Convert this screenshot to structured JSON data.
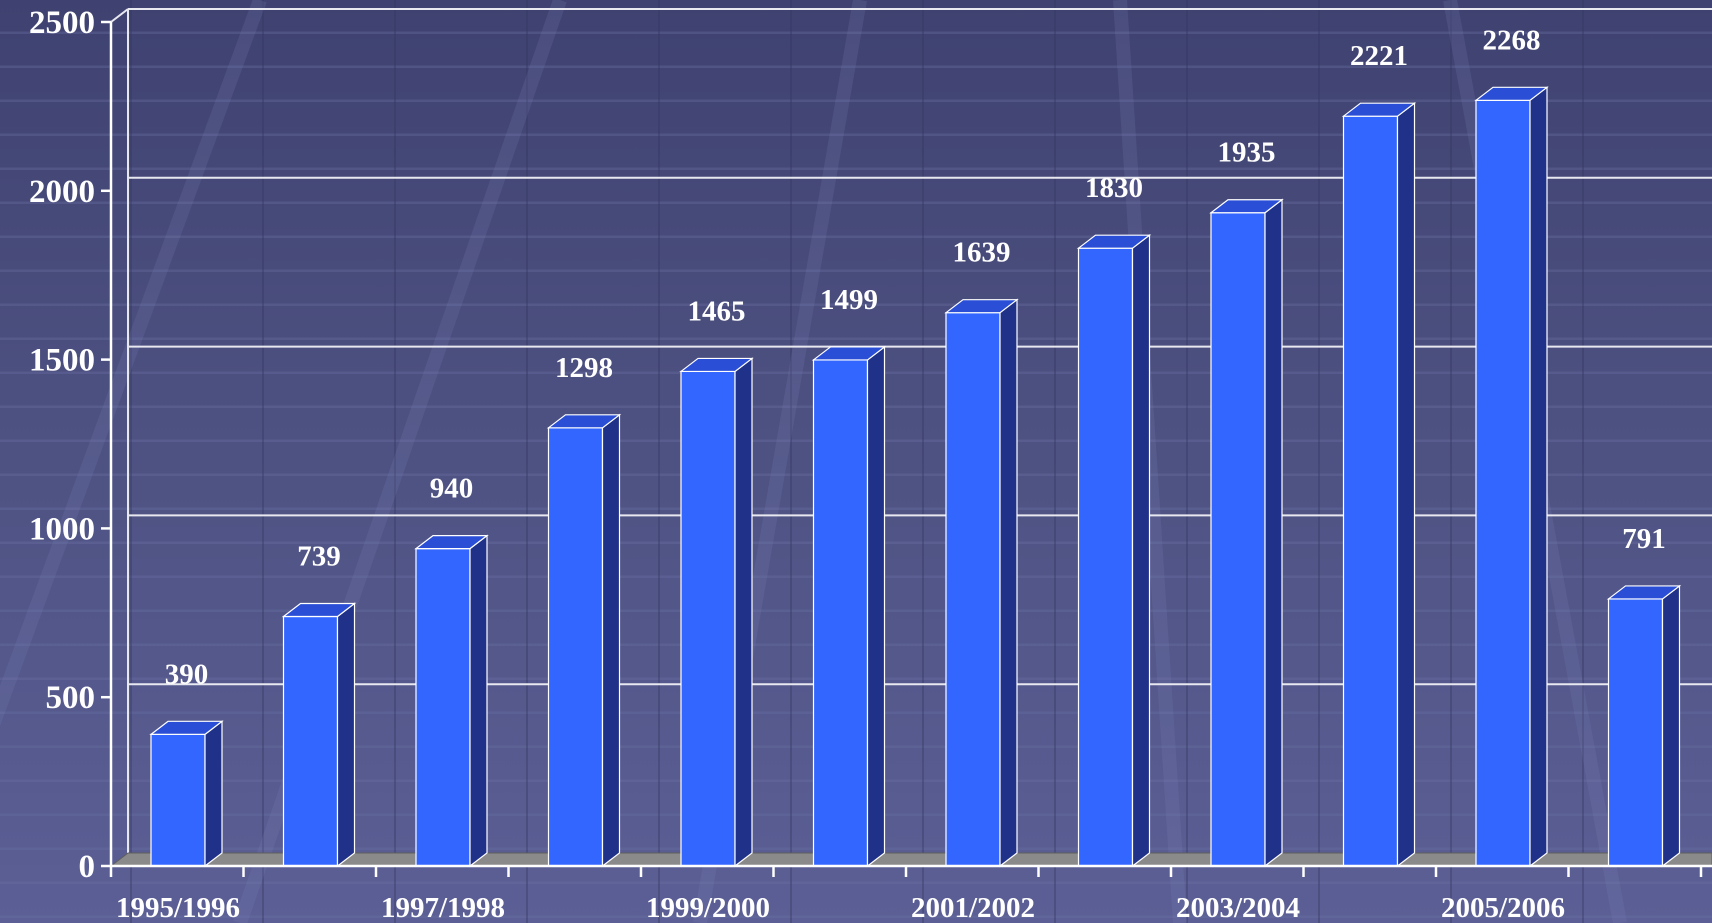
{
  "chart_data": {
    "type": "bar",
    "categories": [
      "1995/1996",
      "",
      "1997/1998",
      "",
      "1999/2000",
      "",
      "2001/2002",
      "",
      "2003/2004",
      "",
      "2005/2006",
      ""
    ],
    "values": [
      390,
      739,
      940,
      1298,
      1465,
      1499,
      1639,
      1830,
      1935,
      2221,
      2268,
      791
    ],
    "data_labels": [
      "390",
      "739",
      "940",
      "1298",
      "1465",
      "1499",
      "1639",
      "1830",
      "1935",
      "2221",
      "2268",
      "791"
    ],
    "y_ticks": [
      "0",
      "500",
      "1000",
      "1500",
      "2000",
      "2500"
    ],
    "ylim": [
      0,
      2500
    ],
    "title": "",
    "xlabel": "",
    "ylabel": "",
    "grid": true,
    "legend": "none",
    "colors": {
      "bar_front": "#3366ff",
      "bar_side": "#1f3189",
      "bar_top": "#2a4fd6",
      "floor": "#8a8a8a",
      "gridline": "#e8e8f0"
    }
  }
}
